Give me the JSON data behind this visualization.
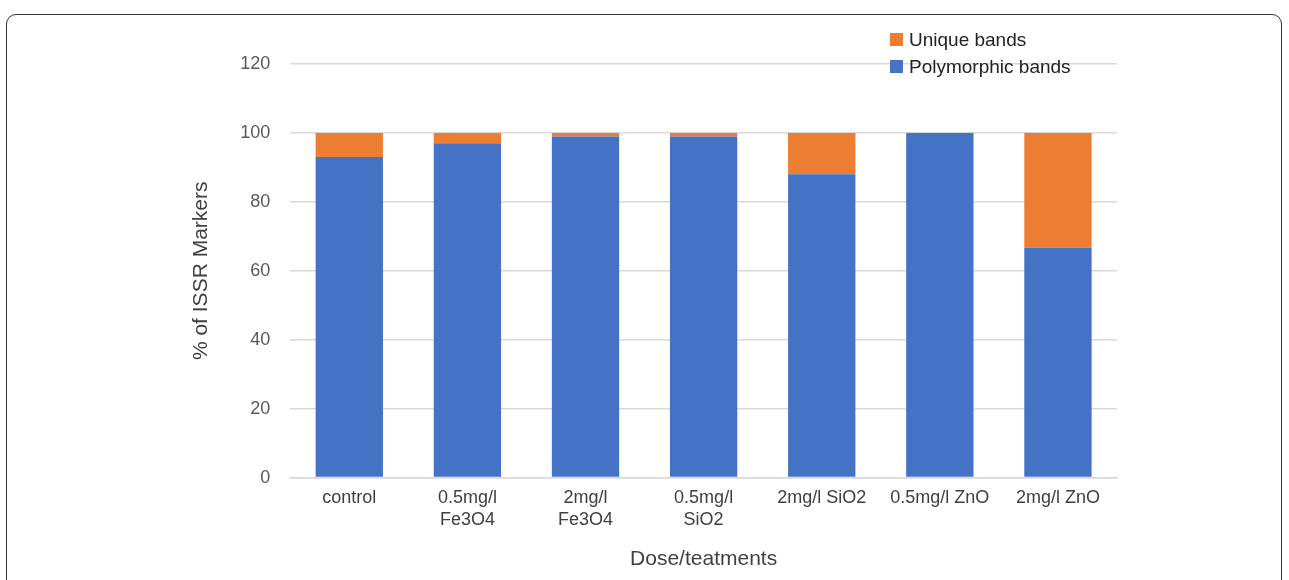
{
  "chart_data": {
    "type": "bar",
    "stacked": true,
    "xlabel": "Dose/teatments",
    "ylabel": "% of ISSR Markers",
    "categories": [
      "control",
      "0.5mg/l Fe3O4",
      "2mg/l Fe3O4",
      "0.5mg/l SiO2",
      "2mg/l SiO2",
      "0.5mg/l ZnO",
      "2mg/l ZnO"
    ],
    "series": [
      {
        "name": "Polymorphic bands",
        "color": "#4472c4",
        "values": [
          93,
          97,
          99,
          99,
          88,
          100,
          66.7
        ]
      },
      {
        "name": "Unique bands",
        "color": "#ed7d31",
        "values": [
          7,
          3,
          1,
          1,
          12,
          0,
          33.3
        ]
      }
    ],
    "ylim": [
      0,
      120
    ],
    "yticks": [
      0,
      20,
      40,
      60,
      80,
      100,
      120
    ],
    "grid": "y",
    "legend": "top right"
  }
}
